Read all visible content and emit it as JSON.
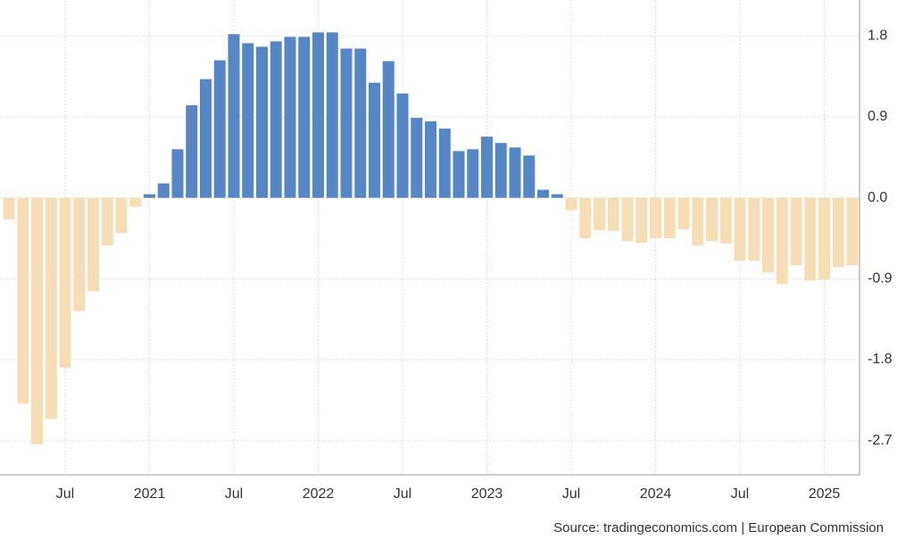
{
  "chart_data": {
    "type": "bar",
    "categories": [
      null,
      null,
      null,
      null,
      "Jul",
      null,
      null,
      null,
      null,
      null,
      "2021",
      null,
      null,
      null,
      null,
      null,
      "Jul",
      null,
      null,
      null,
      null,
      null,
      "2022",
      null,
      null,
      null,
      null,
      null,
      "Jul",
      null,
      null,
      null,
      null,
      null,
      "2023",
      null,
      null,
      null,
      null,
      null,
      "Jul",
      null,
      null,
      null,
      null,
      null,
      "2024",
      null,
      null,
      null,
      null,
      null,
      "Jul",
      null,
      null,
      null,
      null,
      null,
      "2025",
      null,
      null
    ],
    "values": [
      -0.24,
      -2.29,
      -2.74,
      -2.46,
      -1.89,
      -1.26,
      -1.04,
      -0.53,
      -0.39,
      -0.1,
      0.04,
      0.16,
      0.54,
      1.03,
      1.32,
      1.53,
      1.82,
      1.72,
      1.68,
      1.74,
      1.79,
      1.79,
      1.84,
      1.84,
      1.66,
      1.66,
      1.28,
      1.52,
      1.16,
      0.89,
      0.85,
      0.77,
      0.52,
      0.54,
      0.68,
      0.61,
      0.56,
      0.47,
      0.09,
      0.04,
      -0.14,
      -0.45,
      -0.36,
      -0.37,
      -0.48,
      -0.5,
      -0.45,
      -0.45,
      -0.35,
      -0.53,
      -0.48,
      -0.51,
      -0.7,
      -0.7,
      -0.83,
      -0.96,
      -0.75,
      -0.92,
      -0.91,
      -0.77,
      -0.75
    ],
    "positive_color": "#5586c5",
    "negative_color": "#f5deb3",
    "ylim": [
      -3.08,
      2.2
    ],
    "yticks": [
      {
        "value": 1.8,
        "label": "1.8"
      },
      {
        "value": 0.9,
        "label": "0.9"
      },
      {
        "value": 0,
        "label": "0.0"
      },
      {
        "value": -0.9,
        "label": "-0.9"
      },
      {
        "value": -1.8,
        "label": "-1.8"
      },
      {
        "value": -2.7,
        "label": "-2.7"
      }
    ],
    "grid": true,
    "source": "Source: tradingeconomics.com | European Commission"
  }
}
